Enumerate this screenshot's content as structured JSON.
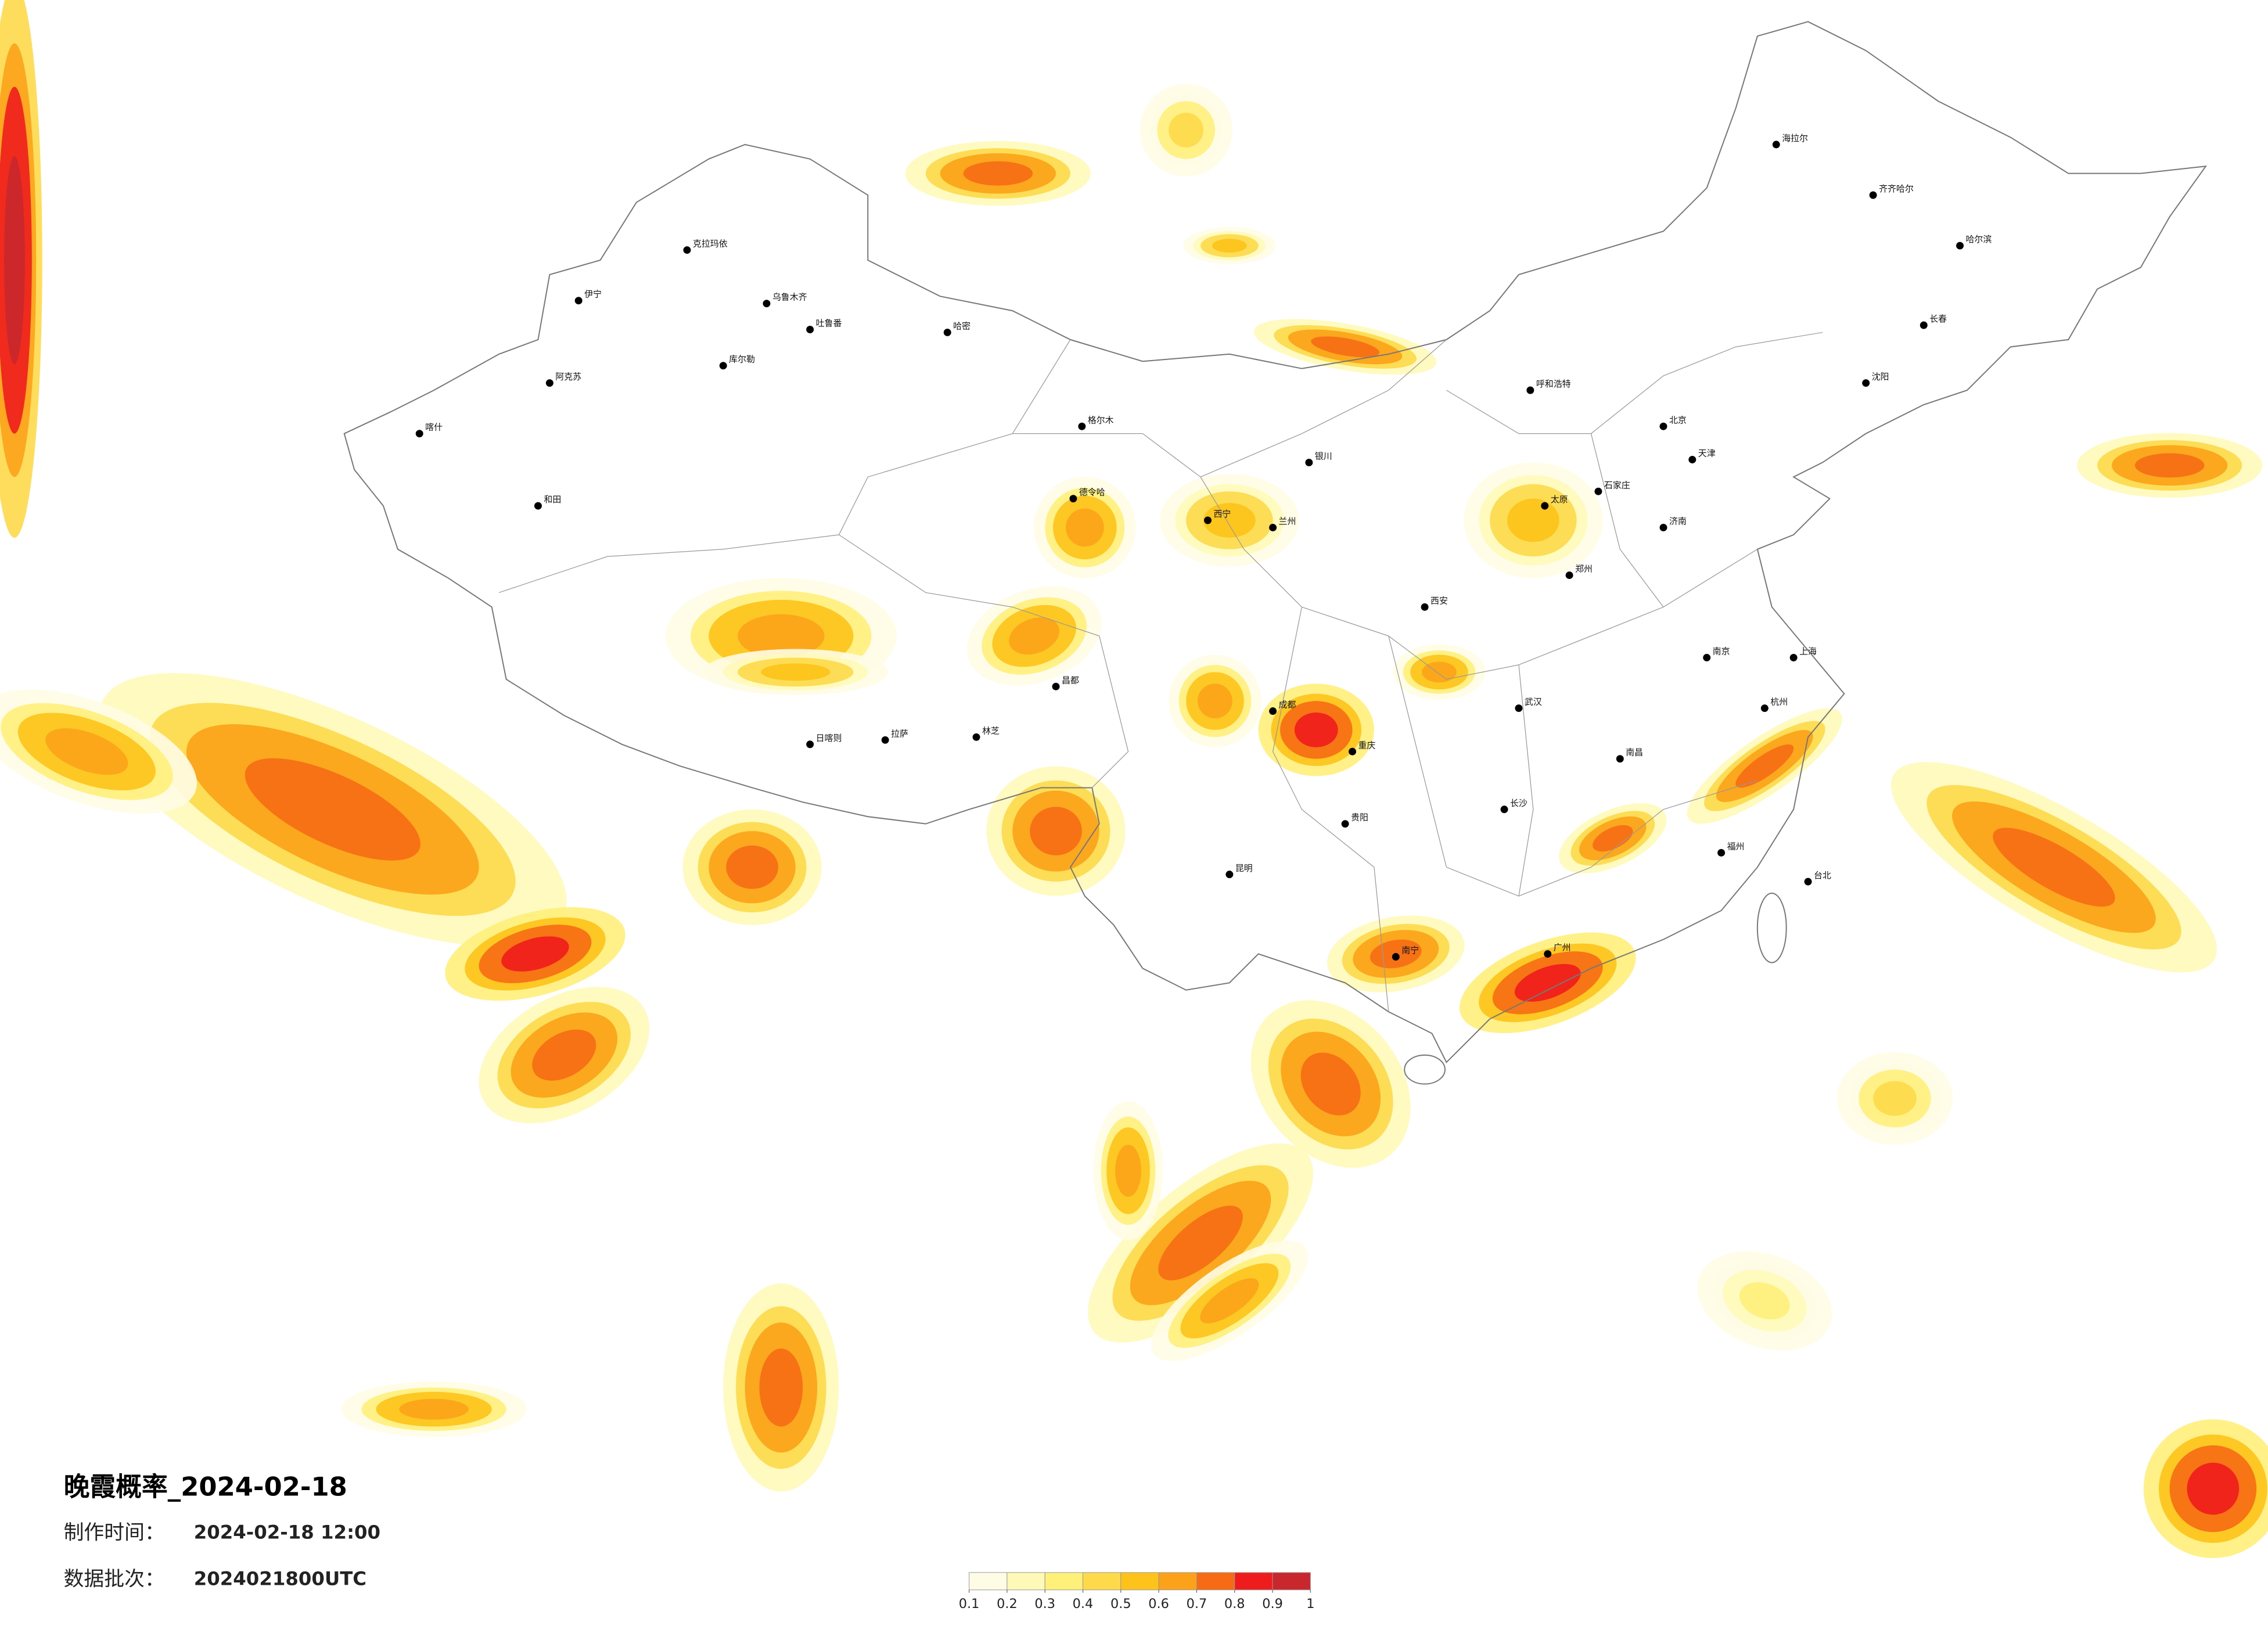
{
  "title": "晚霞概率_2024-02-18",
  "made": {
    "label": "制作时间：",
    "value": "2024-02-18 12:00"
  },
  "batch": {
    "label": "数据批次：",
    "value": "2024021800UTC"
  },
  "legend": {
    "ticks": [
      0.1,
      0.2,
      0.3,
      0.4,
      0.5,
      0.6,
      0.7,
      0.8,
      0.9,
      1
    ],
    "colors": [
      "#fffce6",
      "#fff9b8",
      "#fff07a",
      "#fed94a",
      "#fdc31a",
      "#fca21a",
      "#f66b14",
      "#ee1c1c",
      "#c8282d"
    ]
  },
  "cities": [
    "克拉玛依",
    "伊宁",
    "乌鲁木齐",
    "吐鲁番",
    "哈密",
    "库尔勒",
    "阿克苏",
    "喀什",
    "和田",
    "德令哈",
    "格尔木",
    "拉萨",
    "日喀则",
    "昌都",
    "林芝",
    "西宁",
    "兰州",
    "银川",
    "呼和浩特",
    "北京",
    "天津",
    "石家庄",
    "太原",
    "济南",
    "郑州",
    "西安",
    "成都",
    "重庆",
    "贵阳",
    "昆明",
    "南宁",
    "长沙",
    "武汉",
    "南京",
    "上海",
    "杭州",
    "南昌",
    "福州",
    "广州",
    "台北",
    "沈阳",
    "长春",
    "哈尔滨",
    "齐齐哈尔",
    "海拉尔"
  ]
}
